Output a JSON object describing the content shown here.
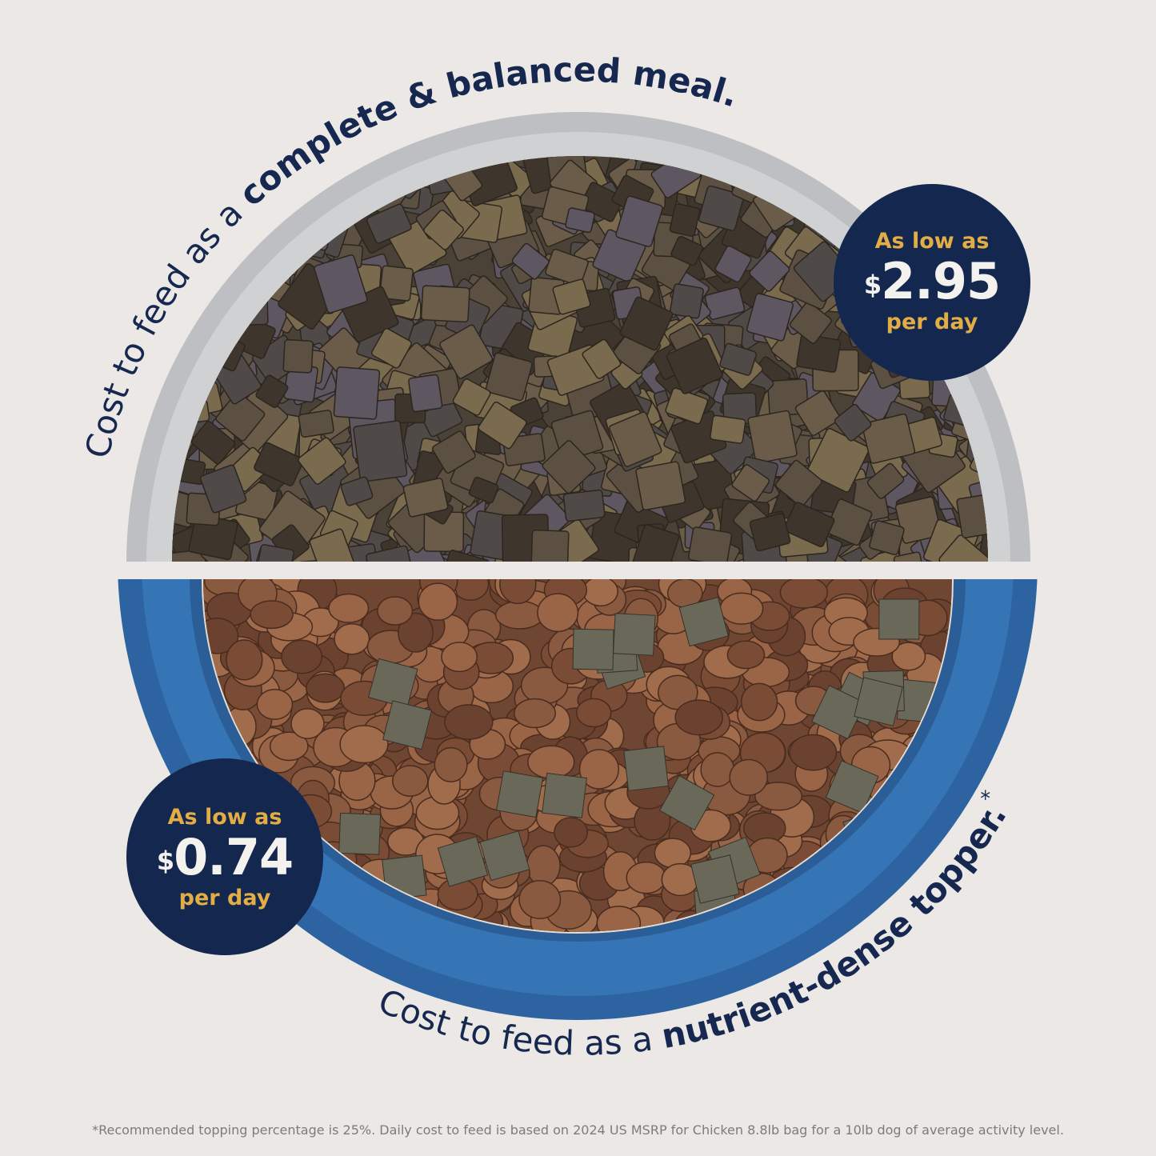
{
  "top": {
    "caption_regular": "Cost to feed as a ",
    "caption_bold": "complete & balanced meal.",
    "badge": {
      "line1": "As low as",
      "currency": "$",
      "amount": "2.95",
      "line3": "per day"
    }
  },
  "bottom": {
    "caption_regular": "Cost to feed as a ",
    "caption_bold": "nutrient-dense topper.",
    "caption_mark": "*",
    "badge": {
      "line1": "As low as",
      "currency": "$",
      "amount": "0.74",
      "line3": "per day"
    }
  },
  "footnote": "*Recommended topping percentage is 25%. Daily cost to feed is based on 2024 US MSRP for Chicken 8.8lb bag for a 10lb dog of average activity level.",
  "colors": {
    "background": "#ebe8e5",
    "navy": "#14284f",
    "gold": "#e3ad45",
    "bowl_blue": "#2f6aa8"
  }
}
